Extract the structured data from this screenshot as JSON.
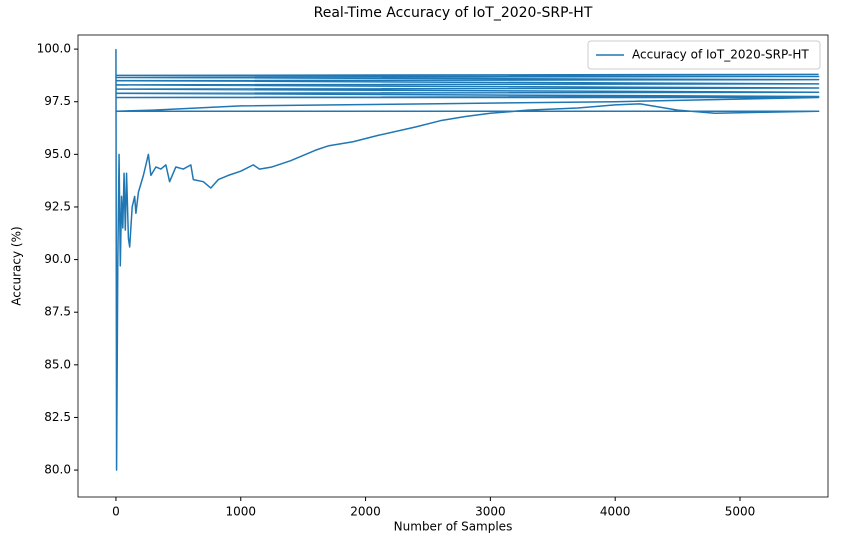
{
  "chart_data": {
    "type": "line",
    "title": "Real-Time Accuracy of IoT_2020-SRP-HT",
    "x_label": "Number of Samples",
    "y_label": "Accuracy (%)",
    "xlim": [
      -304,
      5705
    ],
    "xticks": [
      0,
      1000,
      2000,
      3000,
      4000,
      5000
    ],
    "ylim": [
      78.72,
      100.67
    ],
    "yticks": [
      {
        "value": 80,
        "label": "80.0"
      },
      82.5,
      {
        "value": 85,
        "label": "85.0"
      },
      87.5,
      {
        "value": 90,
        "label": "90.0"
      },
      92.5,
      {
        "value": 95,
        "label": "95.0"
      },
      97.5,
      {
        "value": 100,
        "label": "100.0"
      }
    ],
    "legend": "upper right",
    "series": [
      {
        "name": "Accuracy of IoT_2020-SRP-HT",
        "color": "#1f77b4",
        "x": [
          0,
          5,
          15,
          25,
          35,
          45,
          55,
          65,
          75,
          85,
          100,
          110,
          130,
          150,
          160,
          180,
          220,
          260,
          280,
          320,
          360,
          400,
          430,
          480,
          540,
          600,
          620,
          700,
          760,
          820,
          900,
          1000,
          1100,
          1150,
          1250,
          1400,
          1600,
          1700,
          1900,
          2100,
          2400,
          2600,
          2800,
          3000,
          3300,
          3700,
          4000,
          4200,
          4500,
          4800,
          5200,
          5630,
          0,
          5630,
          0,
          300,
          1000,
          2500,
          4000,
          5630,
          0,
          5630,
          0,
          5630,
          0,
          5630,
          0,
          5630,
          0,
          5630,
          0,
          5630,
          0,
          5630
        ],
        "values": [
          100,
          80,
          90,
          95,
          89.7,
          93,
          91.5,
          94.1,
          91.4,
          94.1,
          91,
          90.6,
          92.5,
          93,
          92.2,
          93.2,
          94,
          95,
          94,
          94.4,
          94.3,
          94.5,
          93.7,
          94.4,
          94.3,
          94.5,
          93.8,
          93.7,
          93.4,
          93.8,
          94,
          94.2,
          94.5,
          94.3,
          94.4,
          94.7,
          95.2,
          95.4,
          95.6,
          95.9,
          96.3,
          96.6,
          96.8,
          96.95,
          97.1,
          97.2,
          97.35,
          97.4,
          97.1,
          96.95,
          97,
          97.05,
          97.05,
          97.05,
          97.05,
          97.1,
          97.3,
          97.4,
          97.5,
          97.7,
          97.7,
          97.75,
          97.9,
          97.95,
          98.1,
          98.15,
          98.3,
          98.35,
          98.5,
          98.55,
          98.65,
          98.7,
          98.75,
          98.8
        ]
      }
    ]
  }
}
